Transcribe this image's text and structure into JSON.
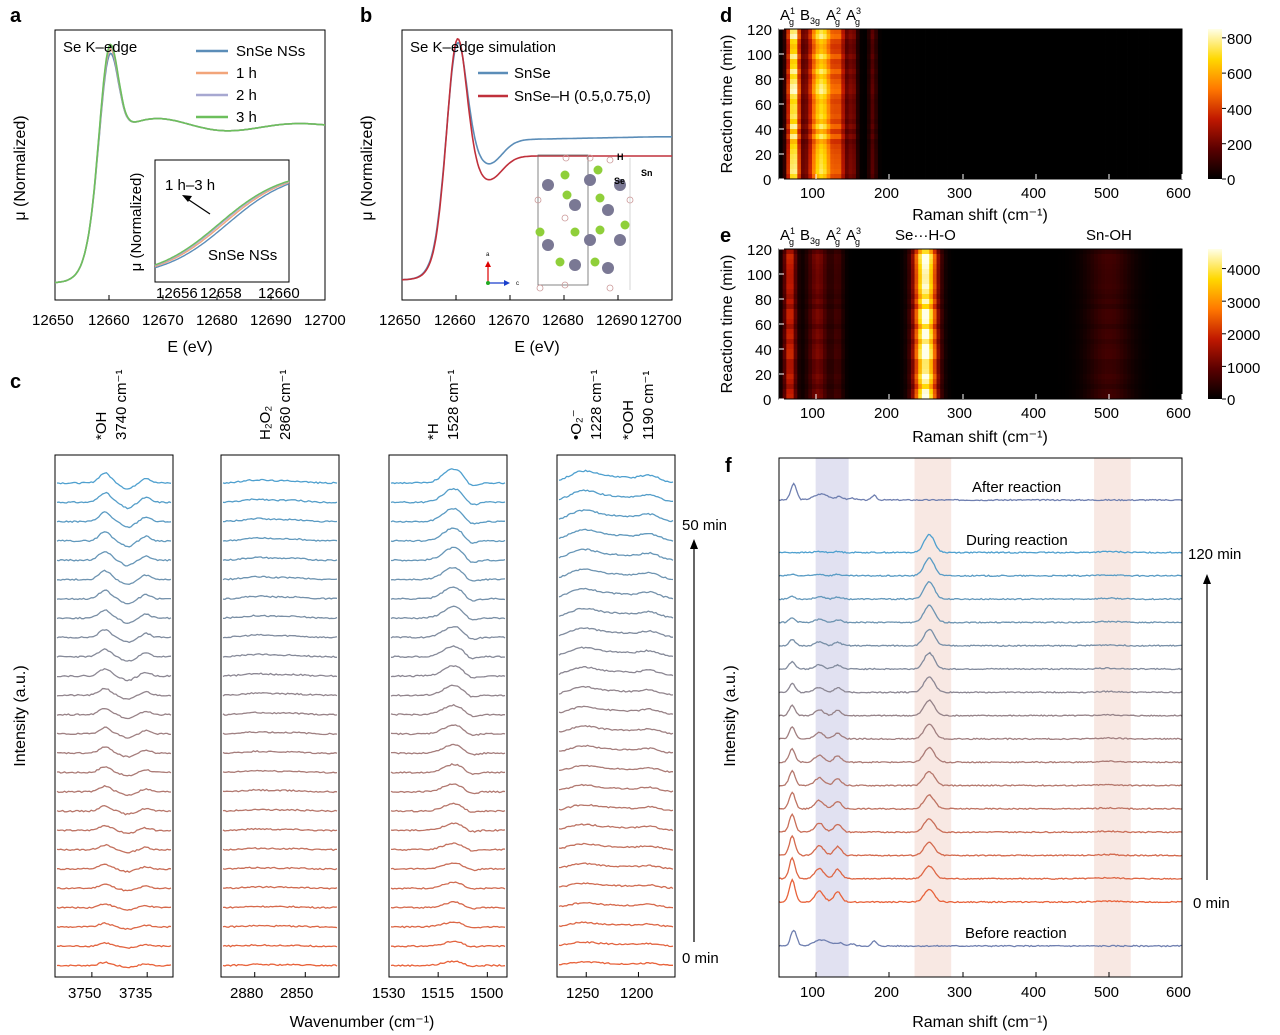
{
  "panel_labels": {
    "a": "a",
    "b": "b",
    "c": "c",
    "d": "d",
    "e": "e",
    "f": "f"
  },
  "chart_data": [
    {
      "panel": "a",
      "type": "line",
      "title": "Se K–edge",
      "xlabel": "E (eV)",
      "ylabel": "μ (Normalized)",
      "xlim": [
        12650,
        12700
      ],
      "xticks": [
        "12650",
        "12660",
        "12670",
        "12680",
        "12690",
        "12700"
      ],
      "legend_position": "top-right",
      "series": [
        {
          "name": "SnSe NSs",
          "color": "#5b8db8",
          "peak": 1.0
        },
        {
          "name": "1 h",
          "color": "#f2a57a",
          "peak": 1.05
        },
        {
          "name": "2 h",
          "color": "#a7a8d1",
          "peak": 1.08
        },
        {
          "name": "3 h",
          "color": "#6cbf5c",
          "peak": 1.1
        }
      ],
      "inset": {
        "ylabel": "μ (Normalized)",
        "xlim": [
          12655.5,
          12660.5
        ],
        "xticks": [
          "12656",
          "12658",
          "12660"
        ],
        "annotation_top": "1 h–3 h",
        "annotation_bottom": "SnSe NSs"
      }
    },
    {
      "panel": "b",
      "type": "line",
      "title": "Se K–edge simulation",
      "xlabel": "E (eV)",
      "ylabel": "μ (Normalized)",
      "xlim": [
        12650,
        12700
      ],
      "xticks": [
        "12650",
        "12660",
        "12670",
        "12680",
        "12690",
        "12700"
      ],
      "legend_position": "top-right",
      "series": [
        {
          "name": "SnSe",
          "color": "#5b8db8"
        },
        {
          "name": "SnSe–H (0.5,0.75,0)",
          "color": "#c0303b"
        }
      ],
      "structure_labels": [
        "H",
        "Sn",
        "Se"
      ],
      "axis_labels": [
        "a",
        "c"
      ]
    },
    {
      "panel": "c",
      "type": "line",
      "xlabel": "Wavenumber (cm⁻¹)",
      "ylabel": "Intensity (a.u.)",
      "time_range": [
        "0 min",
        "50 min"
      ],
      "n_spectra": 26,
      "color_start": "#e8623a",
      "color_end": "#4fa0cf",
      "subpanels": [
        {
          "peaks": [
            "*OH",
            "3740 cm⁻¹"
          ],
          "xlim": [
            3760,
            3728
          ],
          "xticks": [
            3750,
            3735
          ],
          "xtick_labels": [
            "3750",
            "3735"
          ]
        },
        {
          "peaks": [
            "H₂O₂",
            "2860 cm⁻¹"
          ],
          "xlim": [
            2900,
            2830
          ],
          "xticks": [
            2880,
            2850
          ],
          "xtick_labels": [
            "2880",
            "2850"
          ]
        },
        {
          "peaks": [
            "*H",
            "1528 cm⁻¹"
          ],
          "xlim": [
            1530,
            1494
          ],
          "xticks": [
            1530,
            1515,
            1500
          ],
          "xtick_labels": [
            "1530",
            "1515",
            "1500"
          ]
        },
        {
          "peaks": [
            "•O₂⁻",
            "1228 cm⁻¹",
            "*OOH",
            "1190 cm⁻¹"
          ],
          "xlim": [
            1278,
            1165
          ],
          "xticks": [
            1250,
            1200
          ],
          "xtick_labels": [
            "1250",
            "1200"
          ]
        }
      ]
    },
    {
      "panel": "d",
      "type": "heatmap",
      "xlabel": "Raman shift (cm⁻¹)",
      "ylabel": "Reaction time (min)",
      "xlim": [
        50,
        600
      ],
      "ylim": [
        0,
        120
      ],
      "xticks": [
        "100",
        "200",
        "300",
        "400",
        "500",
        "600"
      ],
      "yticks": [
        "0",
        "20",
        "40",
        "60",
        "80",
        "100",
        "120"
      ],
      "colorbar_ticks": [
        "0",
        "200",
        "400",
        "600",
        "800"
      ],
      "colorbar_max": 850,
      "peak_labels": [
        "A",
        "B",
        "A",
        "A"
      ],
      "bands": [
        {
          "center": 70,
          "width": 6,
          "value": 780
        },
        {
          "center": 108,
          "width": 13,
          "value": 700
        },
        {
          "center": 133,
          "width": 6,
          "value": 320
        },
        {
          "center": 150,
          "width": 5,
          "value": 220
        },
        {
          "center": 178,
          "width": 4,
          "value": 160
        }
      ]
    },
    {
      "panel": "e",
      "type": "heatmap",
      "xlabel": "Raman shift (cm⁻¹)",
      "ylabel": "Reaction time (min)",
      "xlim": [
        50,
        600
      ],
      "ylim": [
        0,
        120
      ],
      "xticks": [
        "100",
        "200",
        "300",
        "400",
        "500",
        "600"
      ],
      "yticks": [
        "0",
        "20",
        "40",
        "60",
        "80",
        "100",
        "120"
      ],
      "colorbar_ticks": [
        "0",
        "1000",
        "2000",
        "3000",
        "4000"
      ],
      "colorbar_max": 4600,
      "peak_labels": [
        "A",
        "B",
        "A",
        "A",
        "Se···H-O",
        "Sn-OH"
      ],
      "bands": [
        {
          "center": 65,
          "width": 6,
          "value": 1900
        },
        {
          "center": 103,
          "width": 10,
          "value": 1100
        },
        {
          "center": 130,
          "width": 6,
          "value": 600
        },
        {
          "center": 250,
          "width": 11,
          "value": 4400
        },
        {
          "center": 500,
          "width": 22,
          "value": 600
        }
      ]
    },
    {
      "panel": "f",
      "type": "line",
      "xlabel": "Raman shift (cm⁻¹)",
      "ylabel": "Intensity (a.u.)",
      "xlim": [
        50,
        600
      ],
      "xticks": [
        "100",
        "200",
        "300",
        "400",
        "500",
        "600"
      ],
      "labels": {
        "after": "After reaction",
        "during": "During reaction",
        "before": "Before reaction",
        "end": "120 min",
        "start": "0 min"
      },
      "shaded_regions": [
        {
          "range": [
            100,
            145
          ],
          "color": "#c8c8e6"
        },
        {
          "range": [
            235,
            285
          ],
          "color": "#f2d6cc"
        },
        {
          "range": [
            480,
            530
          ],
          "color": "#f2d6cc"
        }
      ],
      "n_spectra": 16,
      "color_start": "#e8623a",
      "color_end": "#4fa0cf"
    }
  ]
}
